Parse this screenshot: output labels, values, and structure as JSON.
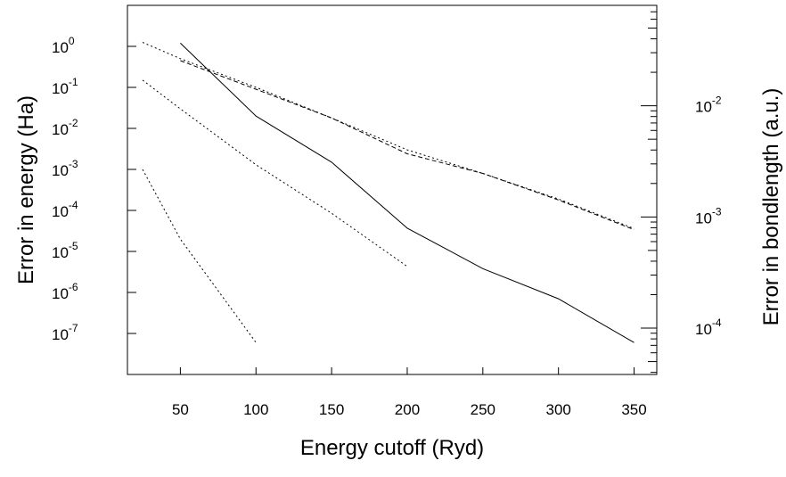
{
  "chart_data": {
    "type": "line",
    "title": "",
    "xlabel": "Energy cutoff (Ryd)",
    "ylabel_left": "Error in energy (Ha)",
    "ylabel_right": "Error in bondlength (a.u.)",
    "x_ticks": [
      50,
      100,
      150,
      200,
      250,
      300,
      350
    ],
    "xlim": [
      15,
      365
    ],
    "y_left_scale": "log",
    "y_left_ylim": [
      1e-08,
      10
    ],
    "y_left_ticks": [
      {
        "base": "10",
        "exp": "0",
        "value": 1
      },
      {
        "base": "10",
        "exp": "-1",
        "value": 0.1
      },
      {
        "base": "10",
        "exp": "-2",
        "value": 0.01
      },
      {
        "base": "10",
        "exp": "-3",
        "value": 0.001
      },
      {
        "base": "10",
        "exp": "-4",
        "value": 0.0001
      },
      {
        "base": "10",
        "exp": "-5",
        "value": 1e-05
      },
      {
        "base": "10",
        "exp": "-6",
        "value": 1e-06
      },
      {
        "base": "10",
        "exp": "-7",
        "value": 1e-07
      }
    ],
    "y_right_scale": "log",
    "y_right_ylim": [
      3.83e-05,
      0.08
    ],
    "y_right_ticks": [
      {
        "base": "10",
        "exp": "-2",
        "value": 0.01
      },
      {
        "base": "10",
        "exp": "-3",
        "value": 0.001
      },
      {
        "base": "10",
        "exp": "-4",
        "value": 0.0001
      }
    ],
    "grid": false,
    "legend": "none",
    "series": [
      {
        "style": "solid",
        "axis": "left",
        "x": [
          50,
          100,
          150,
          200,
          250,
          300,
          350
        ],
        "y": [
          1.2,
          0.02,
          0.0015,
          3.7e-05,
          3.8e-06,
          7e-07,
          6e-08
        ]
      },
      {
        "style": "dotted",
        "axis": "left",
        "x": [
          25,
          50,
          100,
          150,
          200,
          250,
          300,
          350
        ],
        "y": [
          1.25,
          0.5,
          0.1,
          0.018,
          0.003,
          0.0008,
          0.00019,
          3.6e-05
        ]
      },
      {
        "style": "dashed",
        "axis": "left",
        "x": [
          50,
          100,
          150,
          200,
          250,
          300,
          350
        ],
        "y": [
          0.45,
          0.09,
          0.018,
          0.0024,
          0.0008,
          0.00018,
          3.4e-05
        ]
      },
      {
        "style": "dotted",
        "axis": "left",
        "x": [
          25,
          50,
          100,
          150,
          200
        ],
        "y": [
          0.15,
          0.03,
          0.0013,
          8.5e-05,
          4.3e-06
        ]
      },
      {
        "style": "dotted",
        "axis": "left",
        "x": [
          25,
          50,
          100
        ],
        "y": [
          0.001,
          2e-05,
          6e-08
        ]
      }
    ]
  }
}
